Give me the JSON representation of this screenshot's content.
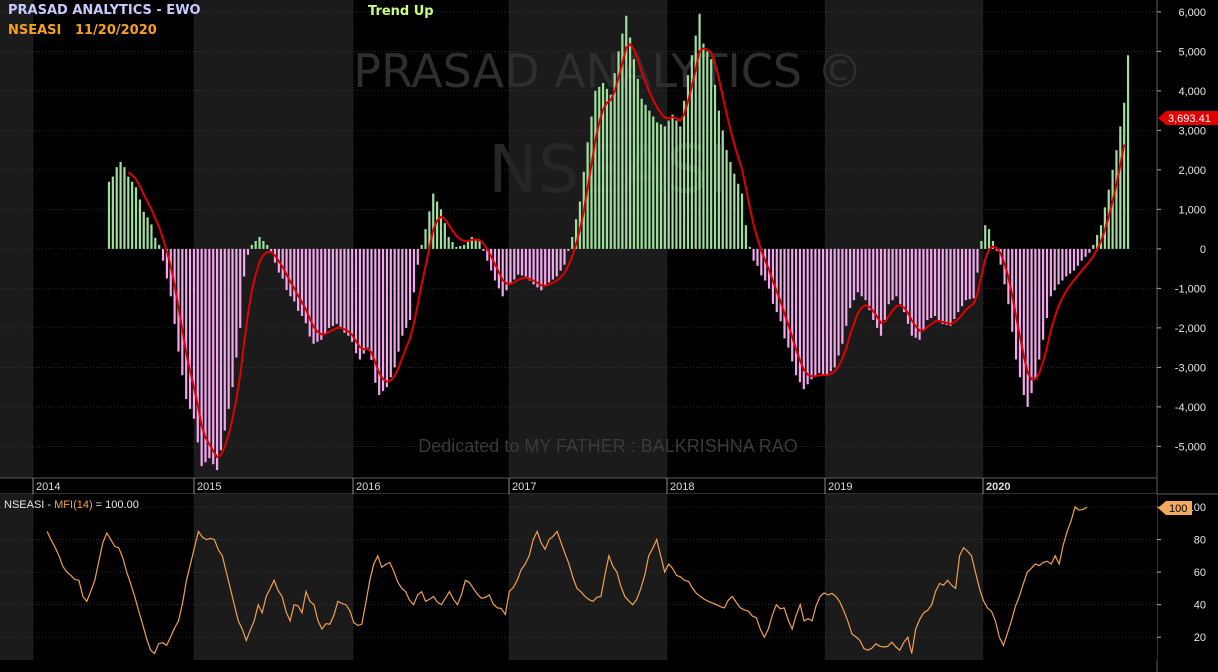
{
  "header": {
    "title": "PRASAD ANALYTICS - EWO",
    "symbol_date": "NSEASI   11/20/2020",
    "trend": "Trend Up"
  },
  "watermark": {
    "brand": "PRASAD ANALYTICS ©",
    "symbol": "NSEASI",
    "dedication": "Dedicated to MY FATHER : BALKRISHNA RAO"
  },
  "colors": {
    "background": "#000000",
    "band_alt": "#1b1b1b",
    "positive_bar": "#9fe09f",
    "negative_bar": "#f3a8ee",
    "signal_line": "#e00000",
    "mfi_line": "#f0a050",
    "price_tag": "#e00000",
    "mfi_tag": "#f4a860",
    "title": "#c8c8ff",
    "symbol": "#f4a020",
    "trend": "#c8ff80"
  },
  "price_tag": "3,693.41",
  "mfi_tag": "100",
  "chart_data": [
    {
      "type": "bar",
      "name": "EWO",
      "ylim": [
        -5800,
        6300
      ],
      "yticks": [
        "6,000",
        "5,000",
        "4,000",
        "3,000",
        "2,000",
        "1,000",
        "0",
        "-1,000",
        "-2,000",
        "-3,000",
        "-4,000",
        "-5,000"
      ],
      "ytick_values": [
        6000,
        5000,
        4000,
        3000,
        2000,
        1000,
        0,
        -1000,
        -2000,
        -3000,
        -4000,
        -5000
      ],
      "x_labels": [
        "2014",
        "2015",
        "2016",
        "2017",
        "2018",
        "2019",
        "2020"
      ],
      "anchors": [
        [
          0,
          1700
        ],
        [
          3,
          2200
        ],
        [
          6,
          1700
        ],
        [
          10,
          800
        ],
        [
          13,
          100
        ],
        [
          14,
          -300
        ],
        [
          16,
          -1200
        ],
        [
          18,
          -2600
        ],
        [
          20,
          -3800
        ],
        [
          22,
          -4300
        ],
        [
          24,
          -5500
        ],
        [
          26,
          -5300
        ],
        [
          28,
          -5600
        ],
        [
          30,
          -4600
        ],
        [
          32,
          -3500
        ],
        [
          34,
          -2000
        ],
        [
          35,
          -700
        ],
        [
          36,
          -150
        ],
        [
          37,
          100
        ],
        [
          39,
          300
        ],
        [
          41,
          100
        ],
        [
          42,
          -100
        ],
        [
          44,
          -600
        ],
        [
          47,
          -1200
        ],
        [
          50,
          -1700
        ],
        [
          53,
          -2400
        ],
        [
          55,
          -2300
        ],
        [
          57,
          -2000
        ],
        [
          59,
          -1900
        ],
        [
          62,
          -2200
        ],
        [
          65,
          -2800
        ],
        [
          67,
          -2500
        ],
        [
          70,
          -3700
        ],
        [
          72,
          -3500
        ],
        [
          74,
          -3000
        ],
        [
          76,
          -2200
        ],
        [
          78,
          -1800
        ],
        [
          80,
          -400
        ],
        [
          81,
          100
        ],
        [
          82,
          500
        ],
        [
          84,
          1400
        ],
        [
          86,
          1000
        ],
        [
          88,
          300
        ],
        [
          90,
          50
        ],
        [
          92,
          100
        ],
        [
          94,
          300
        ],
        [
          96,
          200
        ],
        [
          97,
          -50
        ],
        [
          98,
          -300
        ],
        [
          100,
          -800
        ],
        [
          102,
          -1200
        ],
        [
          104,
          -900
        ],
        [
          106,
          -650
        ],
        [
          108,
          -700
        ],
        [
          110,
          -900
        ],
        [
          112,
          -1050
        ],
        [
          114,
          -850
        ],
        [
          116,
          -700
        ],
        [
          118,
          -400
        ],
        [
          119,
          -50
        ],
        [
          120,
          300
        ],
        [
          122,
          1200
        ],
        [
          124,
          2700
        ],
        [
          126,
          4000
        ],
        [
          128,
          4200
        ],
        [
          130,
          3900
        ],
        [
          132,
          5000
        ],
        [
          134,
          5900
        ],
        [
          136,
          4800
        ],
        [
          138,
          3800
        ],
        [
          140,
          3500
        ],
        [
          142,
          3200
        ],
        [
          144,
          3100
        ],
        [
          146,
          3400
        ],
        [
          148,
          3100
        ],
        [
          150,
          4400
        ],
        [
          152,
          5400
        ],
        [
          153,
          5950
        ],
        [
          154,
          5200
        ],
        [
          156,
          4800
        ],
        [
          158,
          3500
        ],
        [
          160,
          2500
        ],
        [
          162,
          1900
        ],
        [
          164,
          1400
        ],
        [
          165,
          600
        ],
        [
          166,
          50
        ],
        [
          167,
          -300
        ],
        [
          170,
          -800
        ],
        [
          173,
          -1600
        ],
        [
          176,
          -2500
        ],
        [
          178,
          -3200
        ],
        [
          180,
          -3550
        ],
        [
          182,
          -3300
        ],
        [
          184,
          -3150
        ],
        [
          186,
          -3200
        ],
        [
          188,
          -3000
        ],
        [
          190,
          -2400
        ],
        [
          192,
          -1500
        ],
        [
          194,
          -1100
        ],
        [
          196,
          -1300
        ],
        [
          198,
          -1800
        ],
        [
          200,
          -2200
        ],
        [
          202,
          -1400
        ],
        [
          204,
          -1200
        ],
        [
          206,
          -1600
        ],
        [
          208,
          -2200
        ],
        [
          210,
          -2300
        ],
        [
          212,
          -1800
        ],
        [
          214,
          -1700
        ],
        [
          216,
          -1900
        ],
        [
          218,
          -1950
        ],
        [
          220,
          -1600
        ],
        [
          222,
          -1300
        ],
        [
          224,
          -1250
        ],
        [
          225,
          -600
        ],
        [
          226,
          200
        ],
        [
          227,
          600
        ],
        [
          228,
          500
        ],
        [
          229,
          200
        ],
        [
          230,
          -50
        ],
        [
          231,
          -400
        ],
        [
          233,
          -1400
        ],
        [
          235,
          -2800
        ],
        [
          237,
          -3700
        ],
        [
          238,
          -4000
        ],
        [
          240,
          -3300
        ],
        [
          242,
          -2300
        ],
        [
          244,
          -1200
        ],
        [
          246,
          -900
        ],
        [
          248,
          -700
        ],
        [
          250,
          -550
        ],
        [
          252,
          -300
        ],
        [
          254,
          -100
        ],
        [
          255,
          100
        ],
        [
          257,
          600
        ],
        [
          259,
          1500
        ],
        [
          261,
          2500
        ],
        [
          263,
          3700
        ],
        [
          264,
          4900
        ]
      ]
    },
    {
      "type": "line",
      "name": "MFI(14)",
      "label_prefix": "NSEASI - ",
      "label_name": "MFI(14)",
      "label_suffix": " = 100.00",
      "ylim": [
        6,
        108
      ],
      "yticks": [
        "100",
        "80",
        "60",
        "40",
        "20"
      ],
      "ytick_values": [
        100,
        80,
        60,
        40,
        20
      ],
      "points": [
        [
          0,
          85
        ],
        [
          3,
          70
        ],
        [
          5,
          60
        ],
        [
          6,
          58
        ],
        [
          8,
          55
        ],
        [
          9,
          45
        ],
        [
          10,
          42
        ],
        [
          12,
          55
        ],
        [
          14,
          78
        ],
        [
          15,
          84
        ],
        [
          16,
          80
        ],
        [
          18,
          75
        ],
        [
          20,
          60
        ],
        [
          22,
          45
        ],
        [
          24,
          28
        ],
        [
          26,
          12
        ],
        [
          27,
          10
        ],
        [
          28,
          16
        ],
        [
          30,
          15
        ],
        [
          31,
          20
        ],
        [
          33,
          30
        ],
        [
          35,
          55
        ],
        [
          37,
          75
        ],
        [
          38,
          85
        ],
        [
          40,
          80
        ],
        [
          42,
          80
        ],
        [
          44,
          70
        ],
        [
          45,
          60
        ],
        [
          46,
          50
        ],
        [
          47,
          40
        ],
        [
          48,
          30
        ],
        [
          49,
          25
        ],
        [
          50,
          18
        ],
        [
          52,
          30
        ],
        [
          53,
          40
        ],
        [
          54,
          35
        ],
        [
          55,
          45
        ],
        [
          57,
          55
        ],
        [
          59,
          45
        ],
        [
          61,
          30
        ],
        [
          62,
          40
        ],
        [
          64,
          35
        ],
        [
          65,
          48
        ],
        [
          66,
          42
        ],
        [
          67,
          40
        ],
        [
          68,
          30
        ],
        [
          69,
          25
        ],
        [
          71,
          28
        ],
        [
          73,
          42
        ],
        [
          75,
          40
        ],
        [
          77,
          29
        ],
        [
          79,
          28
        ],
        [
          81,
          55
        ],
        [
          82,
          65
        ],
        [
          83,
          70
        ],
        [
          84,
          63
        ],
        [
          86,
          66
        ],
        [
          88,
          54
        ],
        [
          90,
          48
        ],
        [
          92,
          40
        ],
        [
          94,
          48
        ],
        [
          95,
          42
        ],
        [
          97,
          45
        ],
        [
          99,
          40
        ],
        [
          101,
          48
        ],
        [
          103,
          40
        ],
        [
          105,
          55
        ],
        [
          107,
          50
        ],
        [
          109,
          44
        ],
        [
          111,
          46
        ],
        [
          113,
          38
        ],
        [
          115,
          34
        ],
        [
          116,
          48
        ],
        [
          118,
          55
        ],
        [
          120,
          65
        ],
        [
          121,
          70
        ],
        [
          122,
          80
        ],
        [
          123,
          85
        ],
        [
          124,
          78
        ],
        [
          125,
          74
        ],
        [
          126,
          80
        ],
        [
          127,
          82
        ],
        [
          128,
          85
        ],
        [
          129,
          78
        ],
        [
          131,
          65
        ],
        [
          133,
          50
        ],
        [
          135,
          45
        ],
        [
          137,
          42
        ],
        [
          139,
          45
        ],
        [
          141,
          70
        ],
        [
          143,
          60
        ],
        [
          145,
          45
        ],
        [
          147,
          40
        ],
        [
          149,
          50
        ],
        [
          151,
          70
        ],
        [
          153,
          80
        ],
        [
          154,
          70
        ],
        [
          155,
          60
        ],
        [
          156,
          65
        ],
        [
          158,
          58
        ],
        [
          160,
          55
        ],
        [
          162,
          50
        ],
        [
          164,
          45
        ],
        [
          166,
          42
        ],
        [
          168,
          40
        ],
        [
          170,
          38
        ],
        [
          172,
          45
        ],
        [
          174,
          38
        ],
        [
          176,
          36
        ],
        [
          178,
          32
        ],
        [
          180,
          20
        ],
        [
          181,
          25
        ],
        [
          183,
          40
        ],
        [
          185,
          38
        ],
        [
          187,
          25
        ],
        [
          189,
          40
        ],
        [
          190,
          30
        ],
        [
          192,
          30
        ],
        [
          194,
          45
        ],
        [
          196,
          46
        ],
        [
          198,
          45
        ],
        [
          200,
          36
        ],
        [
          202,
          22
        ],
        [
          204,
          18
        ],
        [
          206,
          12
        ],
        [
          208,
          16
        ],
        [
          210,
          14
        ],
        [
          212,
          17
        ],
        [
          214,
          12
        ],
        [
          216,
          20
        ],
        [
          217,
          10
        ],
        [
          218,
          25
        ],
        [
          220,
          35
        ],
        [
          222,
          40
        ],
        [
          224,
          53
        ],
        [
          226,
          55
        ],
        [
          228,
          50
        ],
        [
          229,
          70
        ],
        [
          230,
          75
        ],
        [
          232,
          70
        ],
        [
          234,
          50
        ],
        [
          236,
          38
        ],
        [
          238,
          30
        ],
        [
          239,
          20
        ],
        [
          240,
          15
        ],
        [
          242,
          30
        ],
        [
          244,
          45
        ],
        [
          246,
          60
        ],
        [
          248,
          65
        ],
        [
          250,
          66
        ],
        [
          252,
          65
        ],
        [
          253,
          70
        ],
        [
          254,
          65
        ],
        [
          256,
          85
        ],
        [
          258,
          100
        ],
        [
          261,
          100
        ]
      ]
    }
  ]
}
